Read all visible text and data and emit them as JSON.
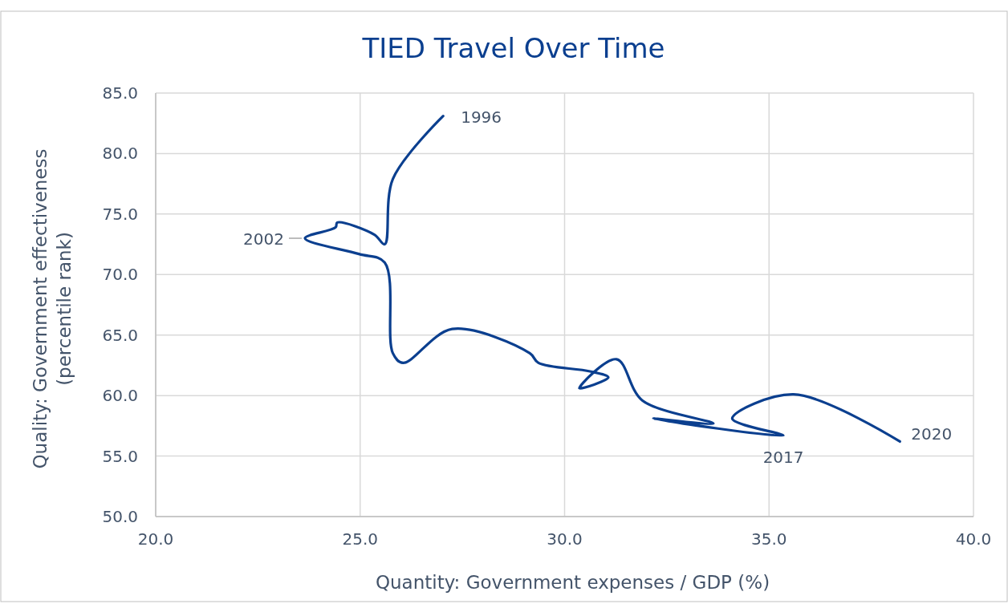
{
  "chart_data": {
    "type": "line",
    "title": "TIED Travel Over Time",
    "xlabel": "Quantity: Government expenses / GDP (%)",
    "ylabel": "Quality: Government effectiveness (percentile rank)",
    "series": [
      {
        "color": "#0b3f8f",
        "x": [
          27.03,
          25.8,
          25.6,
          25.35,
          24.44,
          24.4,
          23.65,
          24.97,
          25.6,
          25.8,
          26.05,
          27.25,
          29.15,
          29.36,
          30.62,
          31.07,
          30.36,
          31.27,
          31.9,
          33.64,
          32.17,
          35.35,
          34.1,
          35.6,
          38.2
        ],
        "values": [
          83.1,
          77.9,
          72.5,
          73.3,
          74.3,
          73.9,
          73.0,
          71.7,
          71.0,
          63.5,
          62.7,
          65.5,
          63.5,
          62.7,
          62.0,
          61.5,
          60.6,
          63.0,
          59.6,
          57.7,
          58.1,
          56.7,
          58.1,
          60.1,
          56.2
        ]
      }
    ],
    "xlim": [
      20,
      40
    ],
    "xticks": [
      {
        "value": 20,
        "label": "20.0"
      },
      {
        "value": 25,
        "label": "25.0"
      },
      {
        "value": 30,
        "label": "30.0"
      },
      {
        "value": 35,
        "label": "35.0"
      },
      {
        "value": 40,
        "label": "40.0"
      }
    ],
    "ylim": [
      50,
      85
    ],
    "yticks": [
      {
        "value": 50,
        "label": "50.0"
      },
      {
        "value": 55,
        "label": "55.0"
      },
      {
        "value": 60,
        "label": "60.0"
      },
      {
        "value": 65,
        "label": "65.0"
      },
      {
        "value": 70,
        "label": "70.0"
      },
      {
        "value": 75,
        "label": "75.0"
      },
      {
        "value": 80,
        "label": "80.0"
      },
      {
        "value": 85,
        "label": "85.0"
      }
    ],
    "grid": true,
    "marker": "none",
    "line_style": "solid",
    "annotations": [
      {
        "text": "1996",
        "x": 27.03,
        "y": 83.1
      },
      {
        "text": "2002",
        "x": 23.65,
        "y": 73.0
      },
      {
        "text": "2017",
        "x": 35.35,
        "y": 56.7
      },
      {
        "text": "2020",
        "x": 38.2,
        "y": 56.2
      }
    ]
  }
}
